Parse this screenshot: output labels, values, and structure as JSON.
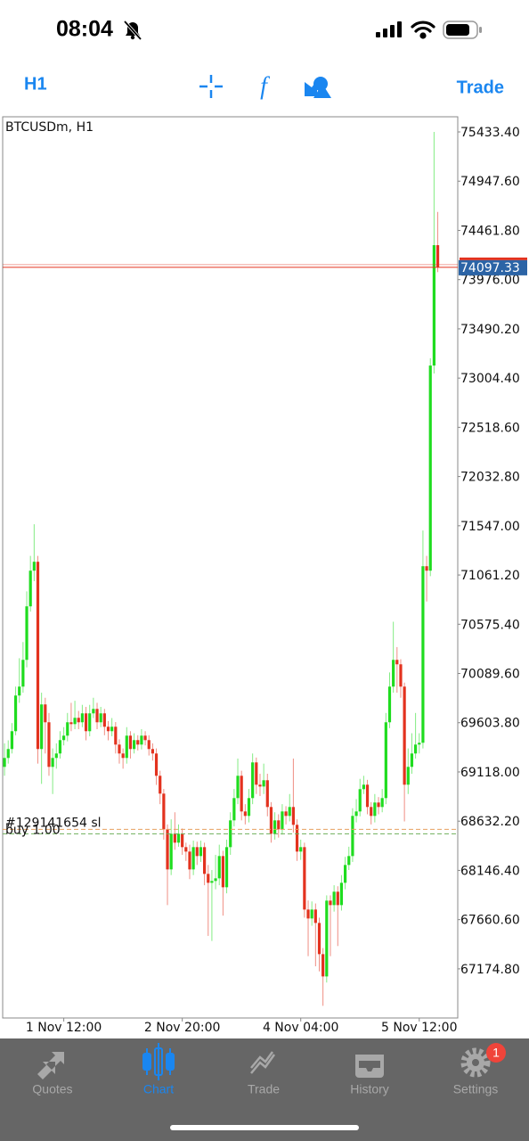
{
  "status_bar": {
    "time": "08:04"
  },
  "toolbar": {
    "timeframe": "H1",
    "trade": "Trade"
  },
  "chart_data": {
    "type": "candlestick",
    "title": "BTCUSDm, H1",
    "up_color": "#1fdc1f",
    "down_color": "#e3321e",
    "candles": [
      [
        69168,
        69400,
        69080,
        69256
      ],
      [
        69256,
        69430,
        69200,
        69344
      ],
      [
        69344,
        69600,
        69300,
        69520
      ],
      [
        69520,
        69960,
        69480,
        69872
      ],
      [
        69872,
        70240,
        69800,
        69960
      ],
      [
        69960,
        70400,
        69900,
        70224
      ],
      [
        70224,
        70900,
        70150,
        70752
      ],
      [
        70752,
        71250,
        70700,
        71104
      ],
      [
        71104,
        71562,
        71000,
        71192
      ],
      [
        71192,
        71250,
        69200,
        69344
      ],
      [
        69344,
        69900,
        69000,
        69784
      ],
      [
        69784,
        69850,
        69300,
        69608
      ],
      [
        69608,
        69700,
        69080,
        69168
      ],
      [
        69168,
        69350,
        68900,
        69256
      ],
      [
        69256,
        69400,
        69150,
        69300
      ],
      [
        69300,
        69520,
        69250,
        69432
      ],
      [
        69432,
        69560,
        69380,
        69476
      ],
      [
        69476,
        69700,
        69420,
        69608
      ],
      [
        69608,
        69800,
        69520,
        69590
      ],
      [
        69590,
        69820,
        69540,
        69652
      ],
      [
        69652,
        69720,
        69540,
        69608
      ],
      [
        69608,
        69780,
        69560,
        69696
      ],
      [
        69696,
        69760,
        69430,
        69520
      ],
      [
        69520,
        69780,
        69470,
        69696
      ],
      [
        69696,
        69850,
        69650,
        69740
      ],
      [
        69740,
        69800,
        69540,
        69608
      ],
      [
        69608,
        69760,
        69560,
        69696
      ],
      [
        69696,
        69740,
        69480,
        69564
      ],
      [
        69564,
        69620,
        69430,
        69520
      ],
      [
        69520,
        69650,
        69470,
        69564
      ],
      [
        69564,
        69610,
        69300,
        69388
      ],
      [
        69388,
        69440,
        69200,
        69300
      ],
      [
        69300,
        69350,
        69150,
        69256
      ],
      [
        69256,
        69560,
        69200,
        69476
      ],
      [
        69476,
        69520,
        69250,
        69344
      ],
      [
        69344,
        69500,
        69300,
        69432
      ],
      [
        69432,
        69480,
        69330,
        69388
      ],
      [
        69388,
        69540,
        69340,
        69476
      ],
      [
        69476,
        69520,
        69380,
        69432
      ],
      [
        69432,
        69480,
        69280,
        69344
      ],
      [
        69344,
        69400,
        69230,
        69300
      ],
      [
        69300,
        69350,
        68990,
        69080
      ],
      [
        69080,
        69130,
        68800,
        68904
      ],
      [
        68904,
        68950,
        68450,
        68552
      ],
      [
        68552,
        68600,
        67804,
        68156
      ],
      [
        68156,
        68650,
        68100,
        68508
      ],
      [
        68508,
        68720,
        68350,
        68420
      ],
      [
        68420,
        68600,
        68380,
        68508
      ],
      [
        68508,
        68560,
        68300,
        68376
      ],
      [
        68376,
        68420,
        68240,
        68332
      ],
      [
        68332,
        68400,
        68060,
        68156
      ],
      [
        68156,
        68440,
        68100,
        68376
      ],
      [
        68376,
        68430,
        68200,
        68288
      ],
      [
        68288,
        68440,
        68230,
        68376
      ],
      [
        68376,
        68420,
        68000,
        68112
      ],
      [
        68112,
        68200,
        67500,
        68024
      ],
      [
        68024,
        68150,
        67450,
        68042
      ],
      [
        68042,
        68300,
        67960,
        68068
      ],
      [
        68068,
        68400,
        68000,
        68288
      ],
      [
        68288,
        68340,
        67700,
        67980
      ],
      [
        67980,
        68450,
        67920,
        68376
      ],
      [
        68376,
        68720,
        68300,
        68640
      ],
      [
        68640,
        68950,
        68580,
        68860
      ],
      [
        68860,
        69250,
        68800,
        69080
      ],
      [
        69080,
        69130,
        68640,
        68728
      ],
      [
        68728,
        68800,
        68600,
        68684
      ],
      [
        68684,
        68950,
        68620,
        68860
      ],
      [
        68860,
        69300,
        68800,
        69212
      ],
      [
        69212,
        69260,
        68900,
        68992
      ],
      [
        68992,
        69100,
        68880,
        68974
      ],
      [
        68974,
        69200,
        68900,
        69036
      ],
      [
        69036,
        69100,
        68680,
        68772
      ],
      [
        68772,
        68820,
        68420,
        68508
      ],
      [
        68508,
        68720,
        68450,
        68640
      ],
      [
        68640,
        68700,
        68470,
        68552
      ],
      [
        68552,
        68800,
        68500,
        68728
      ],
      [
        68728,
        68780,
        68600,
        68684
      ],
      [
        68684,
        68900,
        68630,
        68772
      ],
      [
        68772,
        69250,
        68520,
        68596
      ],
      [
        68596,
        68650,
        68240,
        68332
      ],
      [
        68332,
        68450,
        68250,
        68376
      ],
      [
        68376,
        68420,
        67680,
        67760
      ],
      [
        67760,
        67850,
        67300,
        67672
      ],
      [
        67672,
        67840,
        67600,
        67760
      ],
      [
        67760,
        67820,
        67200,
        67628
      ],
      [
        67628,
        67680,
        67150,
        67320
      ],
      [
        67320,
        67380,
        66810,
        67100
      ],
      [
        67100,
        67900,
        67040,
        67848
      ],
      [
        67848,
        67900,
        67300,
        67804
      ],
      [
        67804,
        68000,
        67740,
        67936
      ],
      [
        67936,
        67990,
        67400,
        67804
      ],
      [
        67804,
        68100,
        67750,
        68024
      ],
      [
        68024,
        68280,
        67960,
        68200
      ],
      [
        68200,
        68380,
        68150,
        68288
      ],
      [
        68288,
        68760,
        68230,
        68684
      ],
      [
        68684,
        68850,
        68620,
        68728
      ],
      [
        68728,
        69050,
        68680,
        68948
      ],
      [
        68948,
        69080,
        68900,
        68992
      ],
      [
        68992,
        69040,
        68700,
        68772
      ],
      [
        68772,
        68820,
        68600,
        68684
      ],
      [
        68684,
        68900,
        68620,
        68816
      ],
      [
        68816,
        68870,
        68700,
        68772
      ],
      [
        68772,
        68950,
        68720,
        68860
      ],
      [
        68860,
        69700,
        68800,
        69608
      ],
      [
        69608,
        70100,
        69550,
        69960
      ],
      [
        69960,
        70600,
        69900,
        70224
      ],
      [
        70224,
        70350,
        69900,
        70180
      ],
      [
        70180,
        70230,
        69850,
        69960
      ],
      [
        69960,
        70000,
        68630,
        68992
      ],
      [
        68992,
        69350,
        68900,
        69168
      ],
      [
        69168,
        69500,
        69100,
        69300
      ],
      [
        69300,
        69700,
        69250,
        69388
      ],
      [
        69388,
        69500,
        69300,
        69406
      ],
      [
        69406,
        71500,
        69350,
        71148
      ],
      [
        71148,
        71250,
        70800,
        71104
      ],
      [
        71104,
        73200,
        71050,
        73128
      ],
      [
        73128,
        75433,
        73050,
        74316
      ],
      [
        74316,
        74644,
        74050,
        74097.33
      ]
    ],
    "xlim": [
      -0.5,
      122.4
    ],
    "xticks": [
      {
        "value": 16,
        "label": "1 Nov 12:00"
      },
      {
        "value": 48,
        "label": "2 Nov 20:00"
      },
      {
        "value": 80,
        "label": "4 Nov 04:00"
      },
      {
        "value": 112,
        "label": "5 Nov 12:00"
      }
    ],
    "ylim": [
      66690,
      75583
    ],
    "yticks": [
      {
        "value": 75433.4,
        "label": "75433.40"
      },
      {
        "value": 74947.6,
        "label": "74947.60"
      },
      {
        "value": 74461.8,
        "label": "74461.80"
      },
      {
        "value": 73976,
        "label": "73976.00"
      },
      {
        "value": 73490.2,
        "label": "73490.20"
      },
      {
        "value": 73004.4,
        "label": "73004.40"
      },
      {
        "value": 72518.6,
        "label": "72518.60"
      },
      {
        "value": 72032.8,
        "label": "72032.80"
      },
      {
        "value": 71547,
        "label": "71547.00"
      },
      {
        "value": 71061.2,
        "label": "71061.20"
      },
      {
        "value": 70575.4,
        "label": "70575.40"
      },
      {
        "value": 70089.6,
        "label": "70089.60"
      },
      {
        "value": 69603.8,
        "label": "69603.80"
      },
      {
        "value": 69118,
        "label": "69118.00"
      },
      {
        "value": 68632.2,
        "label": "68632.20"
      },
      {
        "value": 68146.4,
        "label": "68146.40"
      },
      {
        "value": 67660.6,
        "label": "67660.60"
      },
      {
        "value": 67174.8,
        "label": "67174.80"
      }
    ],
    "current_price": {
      "value": 74097.33,
      "label": "74097.33",
      "color": "#e3321e"
    },
    "orders": [
      {
        "label": "#129141654 sl",
        "value": 68552,
        "color": "#e8a060"
      },
      {
        "label": "buy 1.00",
        "value": 68508,
        "color": "#6fae5a"
      }
    ]
  },
  "tab_bar": {
    "tabs": [
      "Quotes",
      "Chart",
      "Trade",
      "History",
      "Settings"
    ],
    "active": 1,
    "badge": "1"
  }
}
